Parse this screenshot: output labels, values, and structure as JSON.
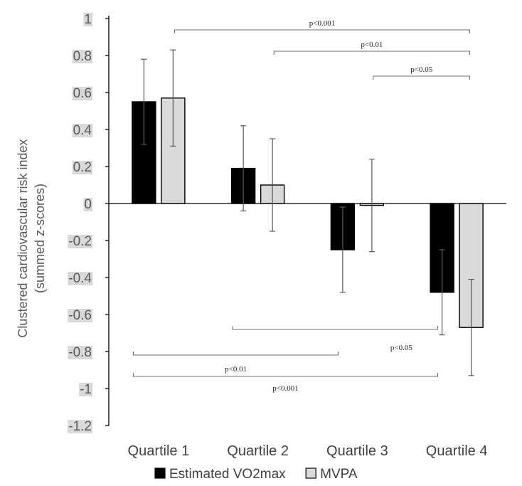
{
  "chart_data": {
    "type": "bar",
    "ylabel_line1": "Clustered cardiovascular risk index",
    "ylabel_line2": "(summed z-scores)",
    "xlabel": "",
    "ylim": [
      -1.2,
      1
    ],
    "yticks": [
      "1",
      "0.8",
      "0.6",
      "0.4",
      "0.2",
      "0",
      "-0.2",
      "-0.4",
      "-0.6",
      "-0.8",
      "-1",
      "-1.2"
    ],
    "categories": [
      "Quartile 1",
      "Quartile 2",
      "Quartile 3",
      "Quartile 4"
    ],
    "series": [
      {
        "name": "Estimated VO2max",
        "color": "#000000",
        "values": [
          0.55,
          0.19,
          -0.25,
          -0.48
        ],
        "error_low": [
          0.32,
          -0.04,
          -0.48,
          -0.71
        ],
        "error_high": [
          0.78,
          0.42,
          -0.02,
          -0.25
        ]
      },
      {
        "name": "MVPA",
        "color": "#d9d9d9",
        "values": [
          0.57,
          0.1,
          -0.01,
          -0.67
        ],
        "error_low": [
          0.31,
          -0.15,
          -0.26,
          -0.93
        ],
        "error_high": [
          0.83,
          0.35,
          0.24,
          -0.41
        ]
      }
    ],
    "legend_position": "bottom",
    "significance_above": [
      {
        "label": "p<0.001",
        "from_category": "Quartile 1",
        "to_category": "Quartile 4",
        "series": "MVPA"
      },
      {
        "label": "p<0.01",
        "from_category": "Quartile 2",
        "to_category": "Quartile 4",
        "series": "MVPA"
      },
      {
        "label": "p<0.05",
        "from_category": "Quartile 3",
        "to_category": "Quartile 4",
        "series": "MVPA"
      }
    ],
    "significance_below": [
      {
        "label": "p<0.05",
        "from_category": "Quartile 2",
        "to_category": "Quartile 4",
        "series": "Estimated VO2max"
      },
      {
        "label": "p<0.01",
        "from_category": "Quartile 1",
        "to_category": "Quartile 3",
        "series": "Estimated VO2max"
      },
      {
        "label": "p<0.001",
        "from_category": "Quartile 1",
        "to_category": "Quartile 4",
        "series": "Estimated VO2max"
      }
    ]
  }
}
